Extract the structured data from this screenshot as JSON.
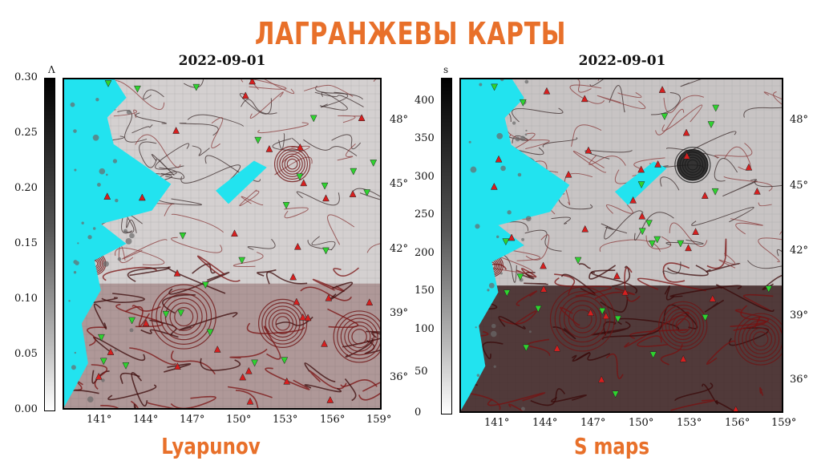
{
  "header": {
    "title": "ЛАГРАНЖЕВЫ КАРТЫ"
  },
  "panels": [
    {
      "date": "2022-09-01",
      "caption": "Lyapunov",
      "colorbar_unit": "Λ",
      "colorbar_ticks": [
        "0.30",
        "0.25",
        "0.20",
        "0.15",
        "0.10",
        "0.05",
        "0.00"
      ],
      "lon_ticks": [
        "141°",
        "144°",
        "147°",
        "150°",
        "153°",
        "156°",
        "159°"
      ],
      "lat_ticks": [
        "48°",
        "45°",
        "42°",
        "39°",
        "36°"
      ]
    },
    {
      "date": "2022-09-01",
      "caption": "S maps",
      "colorbar_unit": "s",
      "colorbar_ticks": [
        "400",
        "350",
        "300",
        "250",
        "200",
        "150",
        "100",
        "50",
        "0"
      ],
      "lon_ticks": [
        "141°",
        "144°",
        "147°",
        "150°",
        "153°",
        "156°",
        "159°"
      ],
      "lat_ticks": [
        "48°",
        "45°",
        "42°",
        "39°",
        "36°"
      ]
    }
  ],
  "colors": {
    "land": "#22e3ef",
    "accent": "#e8702a",
    "markers_up": "#d61f1f",
    "markers_down": "#2fd32f"
  }
}
